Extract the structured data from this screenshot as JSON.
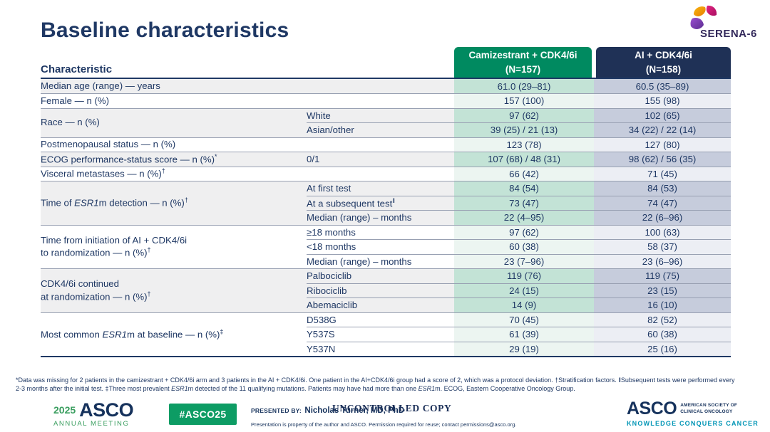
{
  "slide": {
    "title": "Baseline characteristics",
    "serena_logo_text": "SERENA-6"
  },
  "colors": {
    "navy_text": "#1F3864",
    "cam_header_green": "#008A60",
    "ai_header_navy": "#1F3156",
    "cam_shaded": "#C3E3D6",
    "ai_shaded": "#C6CCDC",
    "badge_green": "#0D9C64",
    "asco_green": "#3A9E5F",
    "asco_teal": "#0095B5"
  },
  "table": {
    "characteristic_header": "Characteristic",
    "columns": {
      "cam": {
        "title": "Camizestrant + CDK4/6i",
        "n": "(N=157)"
      },
      "ai": {
        "title": "AI + CDK4/6i",
        "n": "(N=158)"
      }
    },
    "groups": [
      {
        "shade": true,
        "label": [
          {
            "t": "Median age (range) — years"
          }
        ],
        "rows": [
          {
            "sub": "",
            "cam": "61.0 (29–81)",
            "ai": "60.5 (35–89)"
          }
        ]
      },
      {
        "shade": false,
        "label": [
          {
            "t": "Female — n (%)"
          }
        ],
        "rows": [
          {
            "sub": "",
            "cam": "157 (100)",
            "ai": "155 (98)"
          }
        ]
      },
      {
        "shade": true,
        "label": [
          {
            "t": "Race — n (%)"
          }
        ],
        "rows": [
          {
            "sub": "White",
            "cam": "97 (62)",
            "ai": "102 (65)"
          },
          {
            "sub": "Asian/other",
            "cam": "39 (25) / 21 (13)",
            "ai": "34 (22) / 22 (14)"
          }
        ]
      },
      {
        "shade": false,
        "label": [
          {
            "t": "Postmenopausal status — n (%)"
          }
        ],
        "rows": [
          {
            "sub": "",
            "cam": "123 (78)",
            "ai": "127 (80)"
          }
        ]
      },
      {
        "shade": true,
        "label": [
          {
            "t": "ECOG performance-status score — n (%)"
          },
          {
            "t": "*",
            "sup": true
          }
        ],
        "rows": [
          {
            "sub": "0/1",
            "cam": "107 (68) / 48 (31)",
            "ai": "98 (62) / 56 (35)"
          }
        ]
      },
      {
        "shade": false,
        "label": [
          {
            "t": "Visceral metastases — n (%)"
          },
          {
            "t": "†",
            "sup": true
          }
        ],
        "rows": [
          {
            "sub": "",
            "cam": "66 (42)",
            "ai": "71 (45)"
          }
        ]
      },
      {
        "shade": true,
        "label": [
          {
            "t": "Time of "
          },
          {
            "t": "ESR1",
            "italic": true
          },
          {
            "t": "m detection — n (%)"
          },
          {
            "t": "†",
            "sup": true
          }
        ],
        "rows": [
          {
            "sub": "At first test",
            "cam": "84 (54)",
            "ai": "84 (53)"
          },
          {
            "sub": [
              {
                "t": "At a subsequent test"
              },
              {
                "t": "‖",
                "sup": true
              }
            ],
            "cam": "73 (47)",
            "ai": "74 (47)"
          },
          {
            "sub": "Median (range) – months",
            "cam": "22 (4–95)",
            "ai": "22 (6–96)"
          }
        ]
      },
      {
        "shade": false,
        "label": [
          {
            "t": "Time from initiation of AI + CDK4/6i"
          },
          {
            "br": true
          },
          {
            "t": "to randomization — n (%)"
          },
          {
            "t": "†",
            "sup": true
          }
        ],
        "rows": [
          {
            "sub": "≥18 months",
            "cam": "97 (62)",
            "ai": "100 (63)"
          },
          {
            "sub": "<18 months",
            "cam": "60 (38)",
            "ai": "58 (37)"
          },
          {
            "sub": "Median (range) – months",
            "cam": "23 (7–96)",
            "ai": "23 (6–96)"
          }
        ]
      },
      {
        "shade": true,
        "label": [
          {
            "t": "CDK4/6i continued"
          },
          {
            "br": true
          },
          {
            "t": "at randomization — n (%)"
          },
          {
            "t": "†",
            "sup": true
          }
        ],
        "rows": [
          {
            "sub": "Palbociclib",
            "cam": "119 (76)",
            "ai": "119 (75)"
          },
          {
            "sub": "Ribociclib",
            "cam": "24 (15)",
            "ai": "23 (15)"
          },
          {
            "sub": "Abemaciclib",
            "cam": "14 (9)",
            "ai": "16 (10)"
          }
        ]
      },
      {
        "shade": false,
        "label": [
          {
            "t": "Most common "
          },
          {
            "t": "ESR1",
            "italic": true
          },
          {
            "t": "m at baseline — n (%)"
          },
          {
            "t": "‡",
            "sup": true
          }
        ],
        "rows": [
          {
            "sub": "D538G",
            "cam": "70 (45)",
            "ai": "82 (52)"
          },
          {
            "sub": "Y537S",
            "cam": "61 (39)",
            "ai": "60 (38)"
          },
          {
            "sub": "Y537N",
            "cam": "29 (19)",
            "ai": "25 (16)"
          }
        ]
      }
    ]
  },
  "footnote_parts": [
    {
      "t": "*Data was missing for 2 patients in the camizestrant + CDK4/6i arm and 3 patients in the AI + CDK4/6i. One patient in the AI+CDK4/6i group had a score of 2, which was a protocol deviation. †Stratification factors. ‖Subsequent tests were performed every 2-3 months after the initial test. ‡Three most prevalent "
    },
    {
      "t": "ESR1",
      "italic": true
    },
    {
      "t": "m detected of the 11 qualifying mutations. Patients may have had more than one "
    },
    {
      "t": "ESR1",
      "italic": true
    },
    {
      "t": "m. ECOG, Eastern Cooperative Oncology Group."
    }
  ],
  "footer": {
    "meeting": {
      "year": "2025",
      "org": "ASCO",
      "sub": "ANNUAL MEETING"
    },
    "hashtag": "#ASCO25",
    "presented_by_label": "PRESENTED BY:",
    "presenter": "Nicholas Turner, MD, PhD",
    "permission": "Presentation is property of the author and ASCO. Permission required for reuse; contact permissions@asco.org.",
    "uncontrolled": "UNCONTROLLED COPY",
    "asco_logo": {
      "name": "ASCO",
      "society_line1": "AMERICAN SOCIETY OF",
      "society_line2": "CLINICAL ONCOLOGY",
      "tagline": "KNOWLEDGE CONQUERS CANCER"
    }
  }
}
